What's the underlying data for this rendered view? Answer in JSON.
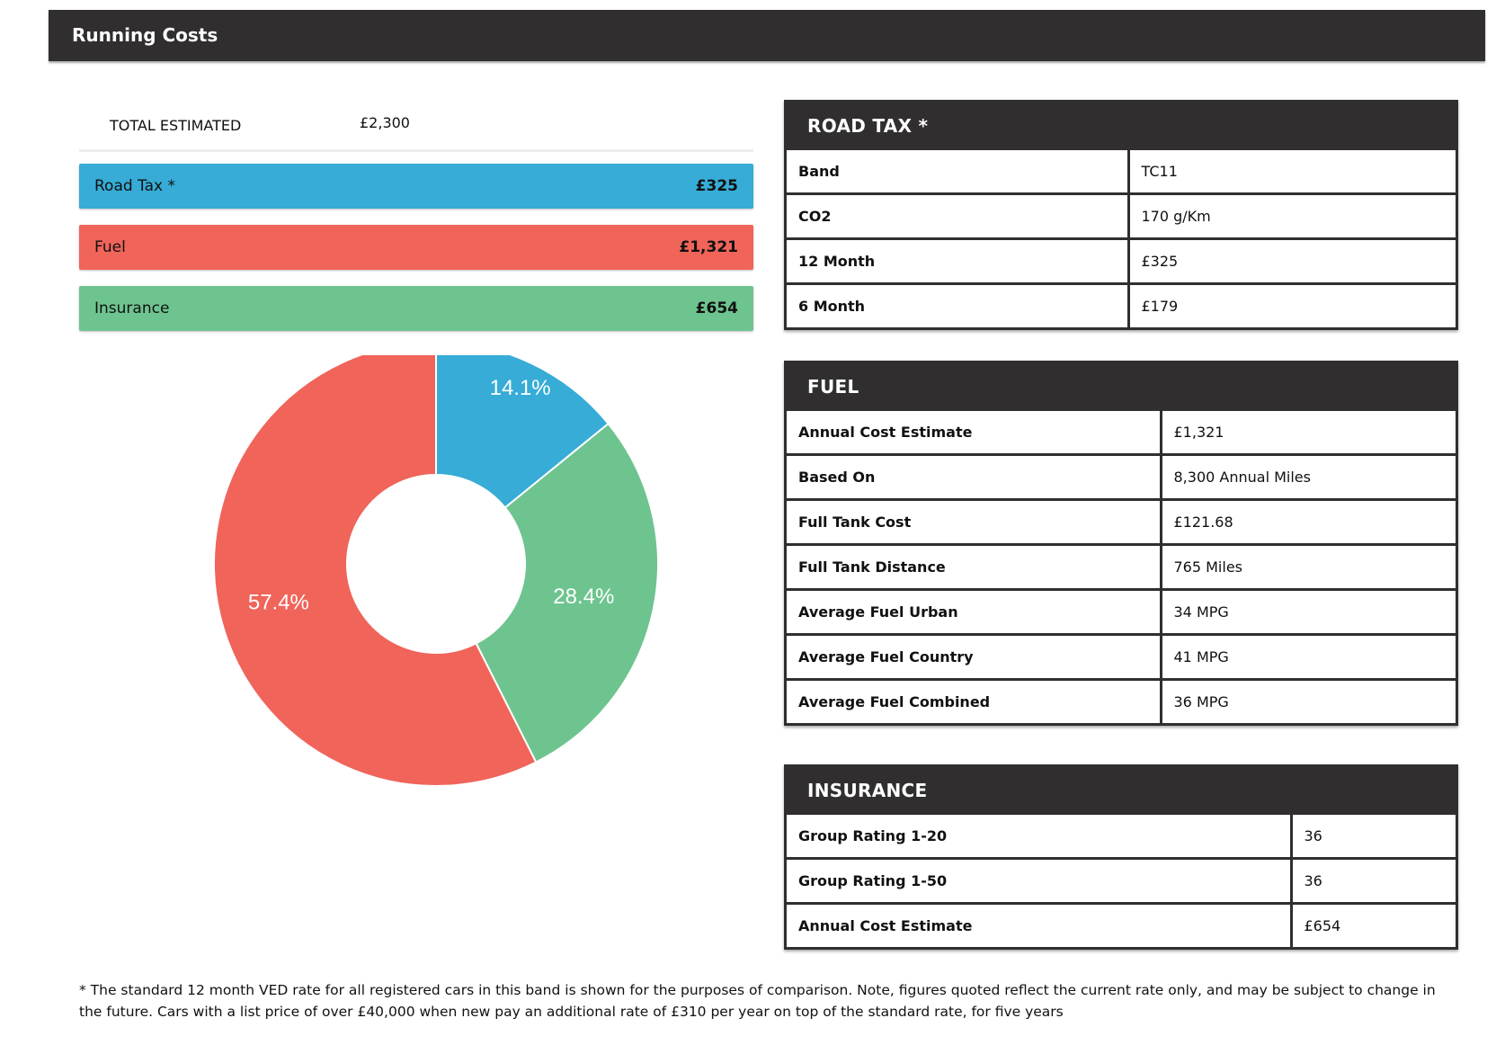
{
  "header": {
    "title": "Running Costs"
  },
  "summary": {
    "total_label": "TOTAL ESTIMATED",
    "total_value": "£2,300",
    "items": [
      {
        "label": "Road Tax *",
        "value": "£325",
        "color": "#36acd6"
      },
      {
        "label": "Fuel",
        "value": "£1,321",
        "color": "#f0645a"
      },
      {
        "label": "Insurance",
        "value": "£654",
        "color": "#6ec48e"
      }
    ]
  },
  "chart_data": {
    "type": "pie",
    "categories": [
      "Road Tax *",
      "Insurance",
      "Fuel"
    ],
    "values": [
      325,
      654,
      1321
    ],
    "labels": [
      "14.1%",
      "28.4%",
      "57.4%"
    ],
    "colors": [
      "#36acd6",
      "#6ec48e",
      "#f0645a"
    ],
    "title": ""
  },
  "road_tax": {
    "title": "ROAD TAX *",
    "rows": [
      {
        "label": "Band",
        "value": "TC11"
      },
      {
        "label": "CO2",
        "value": "170 g/Km"
      },
      {
        "label": "12 Month",
        "value": "£325"
      },
      {
        "label": "6 Month",
        "value": "£179"
      }
    ]
  },
  "fuel": {
    "title": "FUEL",
    "rows": [
      {
        "label": "Annual Cost Estimate",
        "value": "£1,321"
      },
      {
        "label": "Based On",
        "value": "8,300 Annual Miles"
      },
      {
        "label": "Full Tank Cost",
        "value": "£121.68"
      },
      {
        "label": "Full Tank Distance",
        "value": "765 Miles"
      },
      {
        "label": "Average Fuel Urban",
        "value": "34 MPG"
      },
      {
        "label": "Average Fuel Country",
        "value": "41 MPG"
      },
      {
        "label": "Average Fuel Combined",
        "value": "36 MPG"
      }
    ]
  },
  "insurance": {
    "title": "INSURANCE",
    "rows": [
      {
        "label": "Group Rating 1-20",
        "value": "36"
      },
      {
        "label": "Group Rating 1-50",
        "value": "36"
      },
      {
        "label": "Annual Cost Estimate",
        "value": "£654"
      }
    ]
  },
  "footnote": "* The standard 12 month VED rate for all registered cars in this band is shown for the purposes of comparison. Note, figures quoted reflect the current rate only, and may be subject to change in the future. Cars with a list price of over £40,000 when new pay an additional rate of £310 per year on top of the standard rate, for five years"
}
